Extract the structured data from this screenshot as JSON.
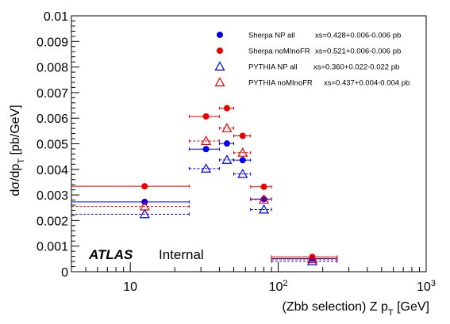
{
  "chart_data": {
    "type": "scatter",
    "x_scale": "log",
    "xlim": [
      4,
      1000
    ],
    "ylim": [
      0,
      0.01
    ],
    "xlabel_main": "(Zbb selection) Z p",
    "xlabel_sub": "T",
    "xlabel_unit": " [GeV]",
    "ylabel_main": "dσ/dp",
    "ylabel_sub": "T",
    "ylabel_unit": " [pb/GeV]",
    "x_ticks": [
      {
        "value": 10,
        "base": "10",
        "exp": ""
      },
      {
        "value": 100,
        "base": "10",
        "exp": "2"
      },
      {
        "value": 1000,
        "base": "10",
        "exp": "3"
      }
    ],
    "y_ticks": [
      "0",
      "0.001",
      "0.002",
      "0.003",
      "0.004",
      "0.005",
      "0.006",
      "0.007",
      "0.008",
      "0.009",
      "0.01"
    ],
    "atlas_label": "ATLAS",
    "atlas_sub": "Internal",
    "legend_position": "top-right",
    "series": [
      {
        "name": "Sherpa NP all",
        "xs": "xs=0.428+0.006-0.006 pb",
        "marker": "filled-circle",
        "color": "#0000ee",
        "line": "solid",
        "points": [
          {
            "x": 12.5,
            "xlo": 0,
            "xhi": 25,
            "y": 0.00273
          },
          {
            "x": 32.5,
            "xlo": 25,
            "xhi": 40,
            "y": 0.00479
          },
          {
            "x": 45,
            "xlo": 40,
            "xhi": 50,
            "y": 0.00501
          },
          {
            "x": 57.5,
            "xlo": 50,
            "xhi": 65,
            "y": 0.00436
          },
          {
            "x": 80,
            "xlo": 65,
            "xhi": 90,
            "y": 0.00284
          },
          {
            "x": 170,
            "xlo": 90,
            "xhi": 250,
            "y": 0.00051
          }
        ]
      },
      {
        "name": "Sherpa noMInoFR",
        "xs": "xs=0.521+0.006-0.006 pb",
        "marker": "filled-circle",
        "color": "#ee0000",
        "line": "solid",
        "points": [
          {
            "x": 12.5,
            "xlo": 0,
            "xhi": 25,
            "y": 0.00334
          },
          {
            "x": 32.5,
            "xlo": 25,
            "xhi": 40,
            "y": 0.00607
          },
          {
            "x": 45,
            "xlo": 40,
            "xhi": 50,
            "y": 0.00639
          },
          {
            "x": 57.5,
            "xlo": 50,
            "xhi": 65,
            "y": 0.00531
          },
          {
            "x": 80,
            "xlo": 65,
            "xhi": 90,
            "y": 0.00332
          },
          {
            "x": 170,
            "xlo": 90,
            "xhi": 250,
            "y": 0.00058
          }
        ]
      },
      {
        "name": "PYTHIA NP all",
        "xs": "xs=0.360+0.022-0.022 pb",
        "marker": "open-triangle",
        "color": "#0000ee",
        "line": "dashed",
        "points": [
          {
            "x": 12.5,
            "xlo": 0,
            "xhi": 25,
            "y": 0.00225
          },
          {
            "x": 32.5,
            "xlo": 25,
            "xhi": 40,
            "y": 0.00403
          },
          {
            "x": 45,
            "xlo": 40,
            "xhi": 50,
            "y": 0.00437
          },
          {
            "x": 57.5,
            "xlo": 50,
            "xhi": 65,
            "y": 0.00382
          },
          {
            "x": 80,
            "xlo": 65,
            "xhi": 90,
            "y": 0.00243
          },
          {
            "x": 170,
            "xlo": 90,
            "xhi": 250,
            "y": 0.00041
          }
        ]
      },
      {
        "name": "PYTHIA noMInoFR",
        "xs": "xs=0.437+0.004-0.004 pb",
        "marker": "open-triangle",
        "color": "#ee0000",
        "line": "dashed",
        "points": [
          {
            "x": 12.5,
            "xlo": 0,
            "xhi": 25,
            "y": 0.00255
          },
          {
            "x": 32.5,
            "xlo": 25,
            "xhi": 40,
            "y": 0.00511
          },
          {
            "x": 45,
            "xlo": 40,
            "xhi": 50,
            "y": 0.00561
          },
          {
            "x": 57.5,
            "xlo": 50,
            "xhi": 65,
            "y": 0.00465
          },
          {
            "x": 80,
            "xlo": 65,
            "xhi": 90,
            "y": 0.00282
          },
          {
            "x": 170,
            "xlo": 90,
            "xhi": 250,
            "y": 0.00049
          }
        ]
      }
    ]
  }
}
